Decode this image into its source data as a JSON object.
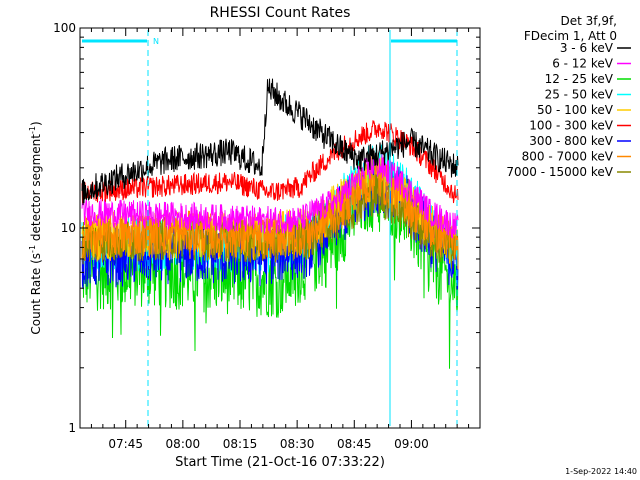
{
  "chart_data": {
    "type": "line",
    "title": "RHESSI Count Rates",
    "xlabel": "Start Time (21-Oct-16 07:33:22)",
    "ylabel_main": "Count Rate (s",
    "ylabel_sup1": "-1",
    "ylabel_mid": " detector segment",
    "ylabel_sup2": "-1",
    "ylabel_end": ")",
    "y_scale": "log",
    "ylim": [
      1,
      100
    ],
    "xlim_minutes": [
      7.55,
      9.3
    ],
    "x_start_time": "07:33:22",
    "x_ticks": [
      {
        "label": "07:45",
        "minutes": 7.75
      },
      {
        "label": "08:00",
        "minutes": 8.0
      },
      {
        "label": "08:15",
        "minutes": 8.25
      },
      {
        "label": "08:30",
        "minutes": 8.5
      },
      {
        "label": "08:45",
        "minutes": 8.75
      },
      {
        "label": "09:00",
        "minutes": 9.0
      }
    ],
    "y_ticks": [
      {
        "label": "1",
        "value": 1
      },
      {
        "label": "10",
        "value": 10
      },
      {
        "label": "100",
        "value": 100
      }
    ],
    "legend_header": [
      "Det 3f,9f,",
      "FDecim 1, Att 0"
    ],
    "series": [
      {
        "name": "3 - 6 keV",
        "color": "#000000"
      },
      {
        "name": "6 - 12 keV",
        "color": "#ff00ff"
      },
      {
        "name": "12 - 25 keV",
        "color": "#00dd00"
      },
      {
        "name": "25 - 50 keV",
        "color": "#00ffff"
      },
      {
        "name": "50 - 100 keV",
        "color": "#ffcc00"
      },
      {
        "name": "100 - 300 keV",
        "color": "#ff0000"
      },
      {
        "name": "300 - 800 keV",
        "color": "#0000ff"
      },
      {
        "name": "800 - 7000 keV",
        "color": "#ff8800"
      },
      {
        "name": "7000 - 15000 keV",
        "color": "#888800"
      }
    ],
    "annotations": {
      "night_label": "N",
      "footer_date": "1-Sep-2022 14:40"
    }
  }
}
